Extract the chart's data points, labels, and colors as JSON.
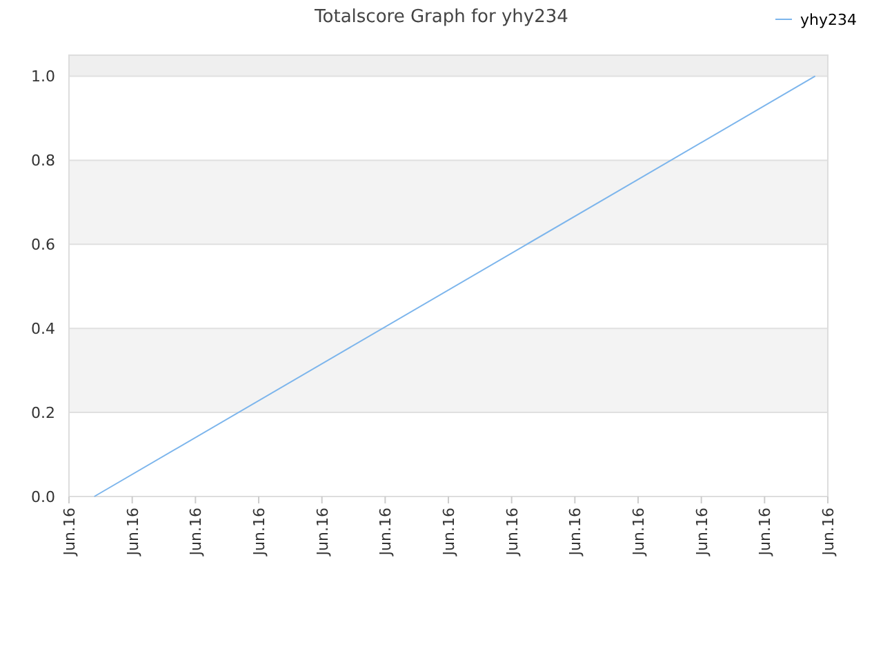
{
  "chart_data": {
    "type": "line",
    "title": "Totalscore Graph for yhy234",
    "categories": [
      "Jun.16",
      null,
      null,
      null,
      null,
      "Jun.16",
      null,
      null,
      null,
      null,
      "Jun.16",
      null,
      null,
      null,
      null,
      "Jun.16",
      null,
      null,
      null,
      null,
      "Jun.16",
      null,
      null,
      null,
      null,
      "Jun.16",
      null,
      null,
      null,
      null,
      "Jun.16",
      null,
      null,
      null,
      null,
      "Jun.16",
      null,
      null,
      null,
      null,
      "Jun.16",
      null,
      null,
      null,
      null,
      "Jun.16",
      null,
      null,
      null,
      null,
      "Jun.16",
      null,
      null,
      null,
      null,
      "Jun.16",
      null,
      null,
      null,
      null,
      "Jun.16"
    ],
    "series": [
      {
        "name": "yhy234",
        "color": "#7cb5ec",
        "values": [
          null,
          null,
          0,
          null,
          null,
          null,
          null,
          null,
          null,
          null,
          null,
          null,
          null,
          null,
          null,
          null,
          null,
          null,
          null,
          null,
          null,
          null,
          null,
          null,
          null,
          null,
          null,
          null,
          null,
          null,
          null,
          null,
          null,
          null,
          null,
          null,
          null,
          null,
          null,
          null,
          null,
          null,
          null,
          null,
          null,
          null,
          null,
          null,
          null,
          null,
          null,
          null,
          null,
          null,
          null,
          null,
          null,
          null,
          null,
          1,
          null
        ]
      }
    ],
    "ylim": [
      0,
      1.05
    ],
    "yticks": [
      {
        "value": 0,
        "label": "0.0"
      },
      {
        "value": 0.2,
        "label": "0.2"
      },
      {
        "value": 0.4,
        "label": "0.4"
      },
      {
        "value": 0.6,
        "label": "0.6"
      },
      {
        "value": 0.8,
        "label": "0.8"
      },
      {
        "value": 1,
        "label": "1.0"
      }
    ],
    "bands": [
      {
        "axis": "y",
        "from": 0.2,
        "to": 0.4,
        "color": "#f3f3f3"
      },
      {
        "axis": "y",
        "from": 0.6,
        "to": 0.8,
        "color": "#f3f3f3"
      },
      {
        "axis": "y",
        "from": 1,
        "to": 1.05,
        "color": "#efefef"
      }
    ],
    "grid": "y",
    "legend": "top right",
    "marker": "none",
    "line_style": "solid"
  }
}
